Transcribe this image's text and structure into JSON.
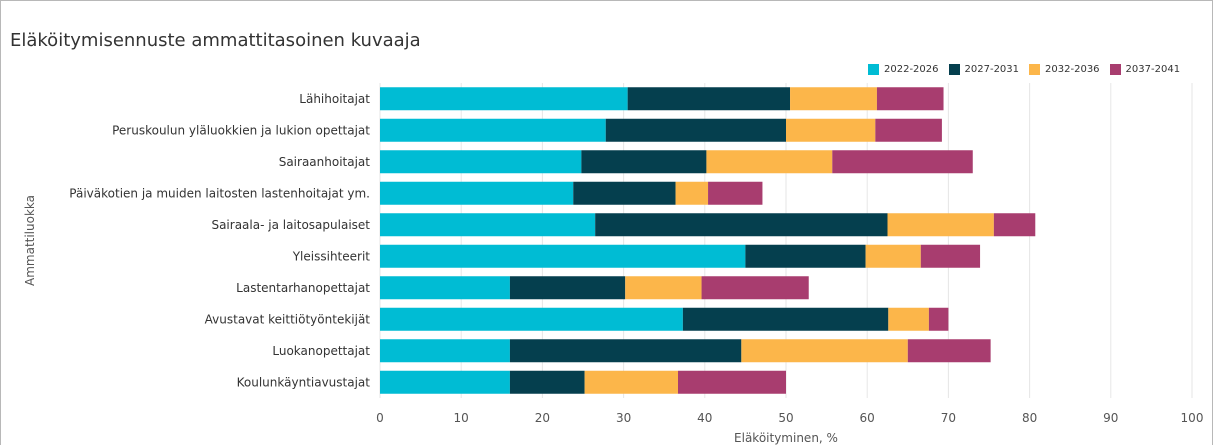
{
  "chart_data": {
    "type": "bar",
    "orientation": "horizontal",
    "stacked": true,
    "title": "Eläköitymisennuste ammattitasoinen kuvaaja",
    "xlabel": "Eläköityminen, %",
    "ylabel": "Ammattiluokka",
    "xlim": [
      0,
      100
    ],
    "ticks": [
      "0",
      "10",
      "20",
      "30",
      "40",
      "50",
      "60",
      "70",
      "80",
      "90",
      "100"
    ],
    "legend_position": "top-right",
    "grid": true,
    "categories": [
      "Lähihoitajat",
      "Peruskoulun yläluokkien ja lukion opettajat",
      "Sairaanhoitajat",
      "Päiväkotien ja muiden laitosten lastenhoitajat ym.",
      "Sairaala- ja laitosapulaiset",
      "Yleissihteerit",
      "Lastentarhanopettajat",
      "Avustavat keittiötyöntekijät",
      "Luokanopettajat",
      "Koulunkäyntiavustajat"
    ],
    "series": [
      {
        "name": "2022-2026",
        "color": "#00bcd4",
        "values": [
          30.5,
          27.8,
          24.8,
          23.8,
          26.5,
          45.0,
          16.0,
          37.3,
          16.0,
          16.0
        ]
      },
      {
        "name": "2027-2031",
        "color": "#053f4e",
        "values": [
          20.0,
          22.2,
          15.4,
          12.6,
          36.0,
          14.8,
          14.2,
          25.3,
          28.5,
          9.2
        ]
      },
      {
        "name": "2032-2036",
        "color": "#fcb64a",
        "values": [
          10.7,
          11.0,
          15.5,
          4.0,
          13.1,
          6.8,
          9.4,
          5.0,
          20.5,
          11.5
        ]
      },
      {
        "name": "2037-2041",
        "color": "#a83d6f",
        "values": [
          8.2,
          8.2,
          17.3,
          6.7,
          5.1,
          7.3,
          13.2,
          2.4,
          10.2,
          13.3
        ]
      }
    ]
  }
}
